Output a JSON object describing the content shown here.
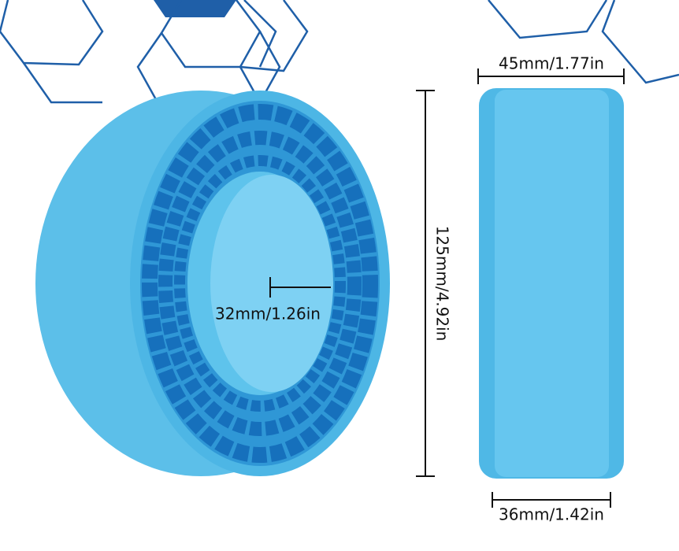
{
  "dimensions": {
    "top_width": "45mm/1.77in",
    "bottom_width": "36mm/1.42in",
    "inner_diameter": "32mm/1.26in",
    "outer_diameter": "125mm/4.92in"
  }
}
